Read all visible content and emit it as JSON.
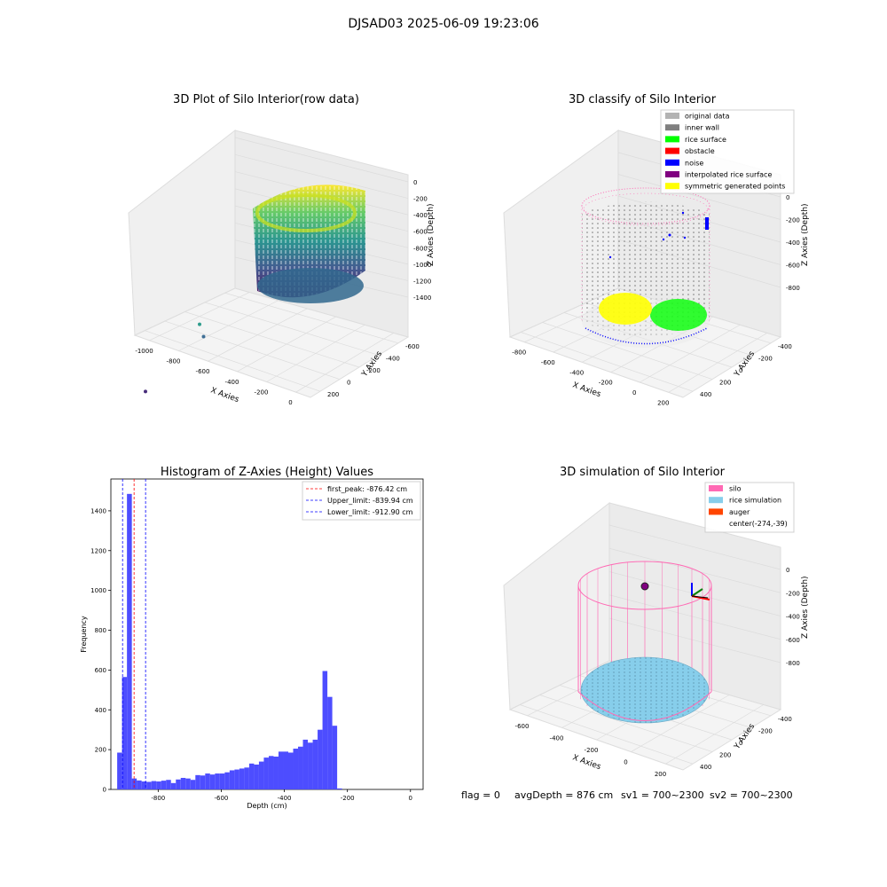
{
  "figure": {
    "title": "DJSAD03 2025-06-09 19:23:06",
    "footer": {
      "flag": "flag = 0",
      "avg_depth": "avgDepth = 876 cm",
      "sv1": "sv1 = 700~2300",
      "sv2": "sv2 = 700~2300"
    }
  },
  "colors": {
    "original_data": "#b3b3b3",
    "inner_wall": "#808080",
    "rice_surface": "#00ff00",
    "obstacle": "#ff0000",
    "noise": "#0000ff",
    "interpolated_rice_surface": "#800080",
    "symmetric_generated_points": "#ffff00",
    "silo": "#ff69b4",
    "rice_simulation": "#87ceeb",
    "auger": "#ff4500",
    "histogram_bar": "#4d4dff",
    "peak_line": "#ff0000",
    "limit_line": "#0000ff"
  },
  "chart_data": [
    {
      "type": "scatter",
      "title": "3D Plot of Silo Interior(row data)",
      "xlabel": "X Axies",
      "ylabel": "Y Axies",
      "zlabel": "Z Axies (Depth)",
      "x_ticks": [
        "-1000",
        "-800",
        "-600",
        "-400",
        "-200",
        "0"
      ],
      "y_ticks": [
        "200",
        "0",
        "-200",
        "-400",
        "-600"
      ],
      "z_ticks": [
        "0",
        "-200",
        "-400",
        "-600",
        "-800",
        "-1000",
        "-1200",
        "-1400"
      ],
      "colormap": "viridis",
      "points": [
        {
          "x": -1050,
          "y": -560,
          "z": -1400
        },
        {
          "x": -820,
          "y": -260,
          "z": -1050
        },
        {
          "x": -780,
          "y": -330,
          "z": -1150
        }
      ]
    },
    {
      "type": "scatter",
      "title": "3D classify of Silo Interior",
      "xlabel": "X Axies",
      "ylabel": "Y Axies",
      "zlabel": "Z Axies (Depth)",
      "x_ticks": [
        "-800",
        "-600",
        "-400",
        "-200",
        "0",
        "200"
      ],
      "y_ticks": [
        "400",
        "200",
        "0",
        "-200",
        "-400"
      ],
      "z_ticks": [
        "0",
        "-200",
        "-400",
        "-600",
        "-800"
      ],
      "legend": [
        "original data",
        "inner wall",
        "rice surface",
        "obstacle",
        "noise",
        "interpolated rice surface",
        "symmetric generated points"
      ],
      "legend_position": "top-right"
    },
    {
      "type": "bar",
      "title": "Histogram of Z-Axies (Height) Values",
      "xlabel": "Depth (cm)",
      "ylabel": "Frequency",
      "xlim": [
        -950,
        40
      ],
      "ylim": [
        0,
        1560
      ],
      "x_ticks": [
        -800,
        -600,
        -400,
        -200,
        0
      ],
      "y_ticks": [
        0,
        200,
        400,
        600,
        800,
        1000,
        1200,
        1400
      ],
      "bins": {
        "start": -930,
        "width": 15.5,
        "values": [
          185,
          565,
          1485,
          55,
          45,
          40,
          38,
          42,
          40,
          44,
          48,
          32,
          50,
          58,
          55,
          48,
          72,
          70,
          80,
          75,
          80,
          80,
          86,
          96,
          100,
          105,
          110,
          130,
          125,
          140,
          160,
          168,
          165,
          190,
          190,
          185,
          205,
          215,
          250,
          235,
          250,
          300,
          595,
          465,
          320,
          5
        ]
      },
      "lines": [
        {
          "label": "first_peak: -876.42 cm",
          "x": -876.42,
          "style": "red-dashed"
        },
        {
          "label": "Upper_limit: -839.94 cm",
          "x": -839.94,
          "style": "blue-dashed"
        },
        {
          "label": "Lower_limit: -912.90 cm",
          "x": -912.9,
          "style": "blue-dashed"
        }
      ],
      "legend_position": "top-right"
    },
    {
      "type": "scatter",
      "title": "3D simulation of Silo Interior",
      "xlabel": "X Axies",
      "ylabel": "Y Axies",
      "zlabel": "Z Axies (Depth)",
      "x_ticks": [
        "-600",
        "-400",
        "-200",
        "0",
        "200"
      ],
      "y_ticks": [
        "400",
        "200",
        "0",
        "-200",
        "-400"
      ],
      "z_ticks": [
        "0",
        "-200",
        "-400",
        "-600",
        "-800"
      ],
      "legend": [
        "silo",
        "rice simulation",
        "auger",
        "center(-274,-39)"
      ],
      "legend_position": "top-right"
    }
  ]
}
